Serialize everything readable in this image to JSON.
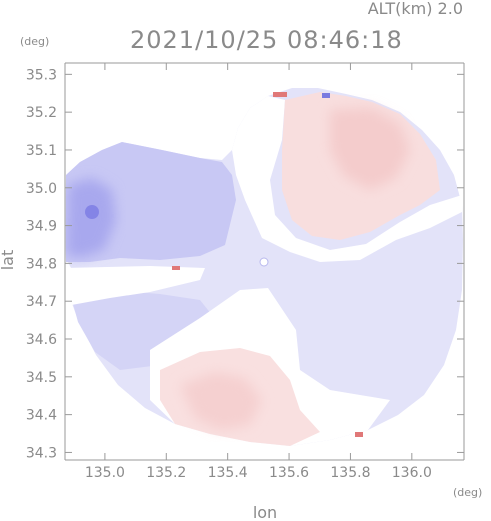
{
  "header": {
    "altitude_label": "ALT(km)  2.0",
    "timestamp": "2021/10/25 08:46:18"
  },
  "chart_data": {
    "type": "heatmap",
    "title": "2021/10/25 08:46:18",
    "xlabel": "lon",
    "ylabel": "lat",
    "x_unit": "(deg)",
    "y_unit": "(deg)",
    "xlim": [
      134.87,
      136.17
    ],
    "ylim": [
      34.28,
      35.33
    ],
    "x_ticks": [
      "135.0",
      "135.2",
      "135.4",
      "135.6",
      "135.8",
      "136.0"
    ],
    "y_ticks": [
      "34.3",
      "34.4",
      "34.5",
      "34.6",
      "34.7",
      "34.8",
      "34.9",
      "35.0",
      "35.1",
      "35.2",
      "35.3"
    ],
    "grid": false,
    "legend": "none",
    "colors": {
      "approaching": "#b4b4f2",
      "receding": "#f7d6d6",
      "near_zero": "#ffffff",
      "axis": "#9a9a9a",
      "text": "#8a8a8a"
    }
  }
}
